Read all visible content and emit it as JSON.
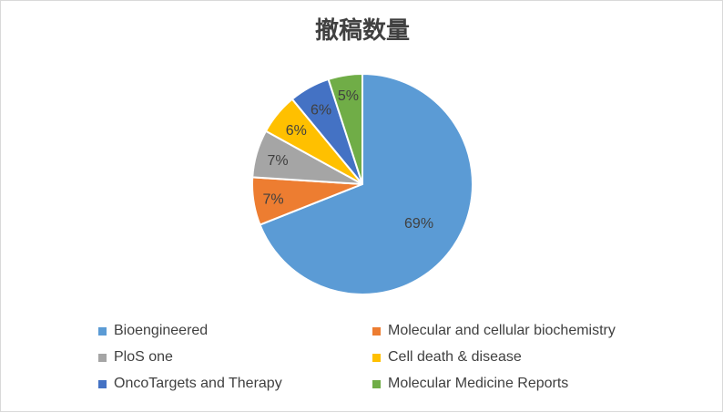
{
  "chart_data": {
    "type": "pie",
    "title": "撤稿数量",
    "categories": [
      "Bioengineered",
      "Molecular and cellular biochemistry",
      "PloS one",
      "Cell death & disease",
      "OncoTargets and Therapy",
      "Molecular Medicine Reports"
    ],
    "values": [
      69,
      7,
      7,
      6,
      6,
      5
    ],
    "labels": [
      "69%",
      "7%",
      "7%",
      "6%",
      "6%",
      "5%"
    ],
    "colors": [
      "#5b9bd5",
      "#ed7d31",
      "#a5a5a5",
      "#ffc000",
      "#4472c4",
      "#70ad47"
    ],
    "legend": "bottom"
  }
}
